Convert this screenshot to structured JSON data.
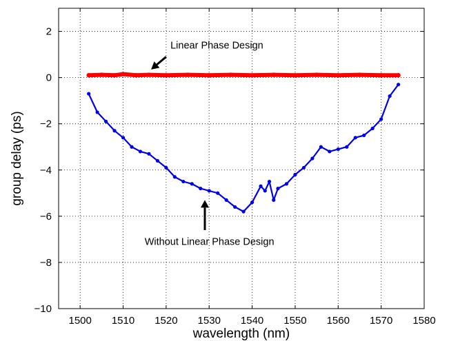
{
  "chart_data": {
    "type": "line",
    "title": "",
    "xlabel": "wavelength (nm)",
    "ylabel": "group delay (ps)",
    "xlim": [
      1495,
      1580
    ],
    "ylim": [
      -10,
      3
    ],
    "xticks": [
      1500,
      1510,
      1520,
      1530,
      1540,
      1550,
      1560,
      1570,
      1580
    ],
    "yticks": [
      2,
      0,
      -2,
      -4,
      -6,
      -8,
      -10
    ],
    "xtick_labels": [
      "1500",
      "1510",
      "1520",
      "1530",
      "1540",
      "1550",
      "1560",
      "1570",
      "1580"
    ],
    "ytick_labels": [
      "2",
      "0",
      "−2",
      "−4",
      "−6",
      "−8",
      "−10"
    ],
    "grid": true,
    "series": [
      {
        "color": "#ff0000",
        "x": [
          1502,
          1505,
          1508,
          1510,
          1513,
          1516,
          1520,
          1525,
          1530,
          1535,
          1540,
          1545,
          1550,
          1555,
          1560,
          1565,
          1570,
          1574
        ],
        "y": [
          0.1,
          0.12,
          0.1,
          0.15,
          0.1,
          0.12,
          0.1,
          0.12,
          0.1,
          0.12,
          0.1,
          0.12,
          0.1,
          0.12,
          0.1,
          0.12,
          0.1,
          0.1
        ]
      },
      {
        "color": "#0000ee",
        "x": [
          1502,
          1504,
          1506,
          1508,
          1510,
          1512,
          1514,
          1516,
          1518,
          1520,
          1522,
          1524,
          1526,
          1528,
          1530,
          1532,
          1534,
          1536,
          1538,
          1540,
          1542,
          1543,
          1544,
          1545,
          1546,
          1548,
          1550,
          1552,
          1554,
          1556,
          1558,
          1560,
          1562,
          1564,
          1566,
          1568,
          1570,
          1572,
          1574
        ],
        "y": [
          -0.7,
          -1.5,
          -1.9,
          -2.3,
          -2.6,
          -3.0,
          -3.2,
          -3.3,
          -3.6,
          -3.9,
          -4.3,
          -4.5,
          -4.6,
          -4.8,
          -4.9,
          -5.0,
          -5.3,
          -5.6,
          -5.8,
          -5.4,
          -4.7,
          -4.9,
          -4.5,
          -5.3,
          -4.8,
          -4.6,
          -4.2,
          -3.9,
          -3.5,
          -3.0,
          -3.2,
          -3.1,
          -3.0,
          -2.6,
          -2.5,
          -2.2,
          -1.8,
          -0.8,
          -0.3
        ]
      }
    ],
    "annotations": [
      {
        "text": "Linear Phase Design",
        "x": 1521,
        "y": 1.4,
        "arrow_from": [
          1520,
          0.9
        ],
        "arrow_to": [
          1516.5,
          0.35
        ]
      },
      {
        "text": "Without Linear Phase Design",
        "x": 1515,
        "y": -7.1,
        "arrow_from": [
          1529,
          -6.6
        ],
        "arrow_to": [
          1529,
          -5.3
        ]
      }
    ]
  }
}
